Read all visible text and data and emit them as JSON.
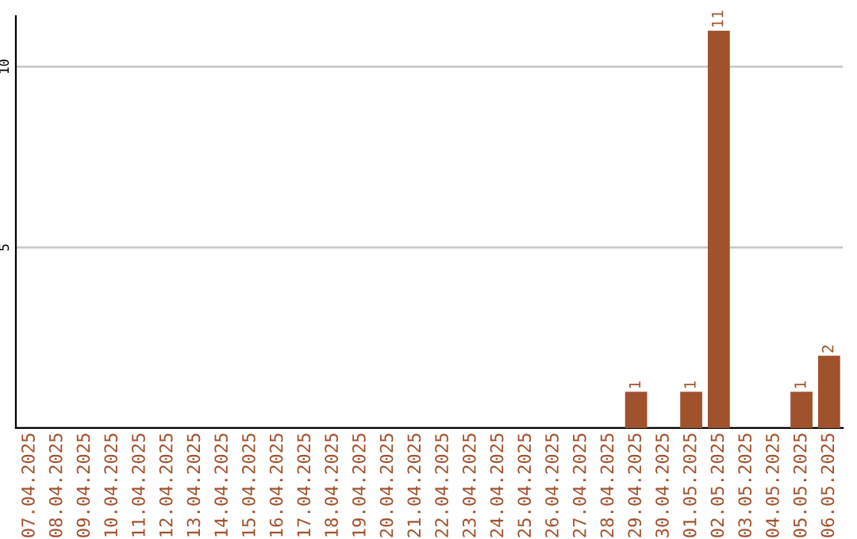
{
  "chart_data": {
    "type": "bar",
    "categories": [
      "07.04.2025",
      "08.04.2025",
      "09.04.2025",
      "10.04.2025",
      "11.04.2025",
      "12.04.2025",
      "13.04.2025",
      "14.04.2025",
      "15.04.2025",
      "16.04.2025",
      "17.04.2025",
      "18.04.2025",
      "19.04.2025",
      "20.04.2025",
      "21.04.2025",
      "22.04.2025",
      "23.04.2025",
      "24.04.2025",
      "25.04.2025",
      "26.04.2025",
      "27.04.2025",
      "28.04.2025",
      "29.04.2025",
      "30.04.2025",
      "01.05.2025",
      "02.05.2025",
      "03.05.2025",
      "04.05.2025",
      "05.05.2025",
      "06.05.2025"
    ],
    "values": [
      0,
      0,
      0,
      0,
      0,
      0,
      0,
      0,
      0,
      0,
      0,
      0,
      0,
      0,
      0,
      0,
      0,
      0,
      0,
      0,
      0,
      0,
      1,
      0,
      1,
      11,
      0,
      0,
      1,
      2
    ],
    "value_labels": [
      null,
      null,
      null,
      null,
      null,
      null,
      null,
      null,
      null,
      null,
      null,
      null,
      null,
      null,
      null,
      null,
      null,
      null,
      null,
      null,
      null,
      null,
      "1",
      null,
      "1",
      "11",
      null,
      null,
      "1",
      "2"
    ],
    "color": "#a0522d",
    "ylim": [
      0,
      11.4
    ],
    "yticks": [
      5,
      10
    ],
    "grid": "y",
    "legend": false
  }
}
